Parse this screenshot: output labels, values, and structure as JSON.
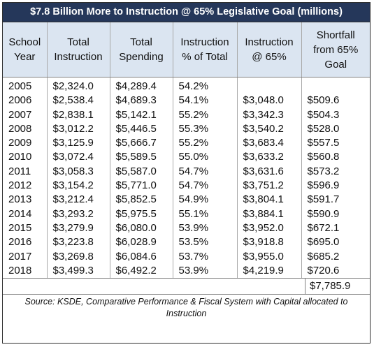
{
  "title": "$7.8 Billion More to Instruction @ 65% Legislative Goal (millions)",
  "columns": [
    [
      "School",
      "Year"
    ],
    [
      "Total",
      "Instruction"
    ],
    [
      "Total",
      "Spending"
    ],
    [
      "Instruction",
      "% of Total"
    ],
    [
      "Instruction",
      "@ 65%"
    ],
    [
      "Shortfall",
      "from 65%",
      "Goal"
    ]
  ],
  "rows": [
    [
      "2005",
      "$2,324.0",
      "$4,289.4",
      "54.2%",
      "",
      ""
    ],
    [
      "2006",
      "$2,538.4",
      "$4,689.3",
      "54.1%",
      "$3,048.0",
      "$509.6"
    ],
    [
      "2007",
      "$2,838.1",
      "$5,142.1",
      "55.2%",
      "$3,342.3",
      "$504.3"
    ],
    [
      "2008",
      "$3,012.2",
      "$5,446.5",
      "55.3%",
      "$3,540.2",
      "$528.0"
    ],
    [
      "2009",
      "$3,125.9",
      "$5,666.7",
      "55.2%",
      "$3,683.4",
      "$557.5"
    ],
    [
      "2010",
      "$3,072.4",
      "$5,589.5",
      "55.0%",
      "$3,633.2",
      "$560.8"
    ],
    [
      "2011",
      "$3,058.3",
      "$5,587.0",
      "54.7%",
      "$3,631.6",
      "$573.2"
    ],
    [
      "2012",
      "$3,154.2",
      "$5,771.0",
      "54.7%",
      "$3,751.2",
      "$596.9"
    ],
    [
      "2013",
      "$3,212.4",
      "$5,852.5",
      "54.9%",
      "$3,804.1",
      "$591.7"
    ],
    [
      "2014",
      "$3,293.2",
      "$5,975.5",
      "55.1%",
      "$3,884.1",
      "$590.9"
    ],
    [
      "2015",
      "$3,279.9",
      "$6,080.0",
      "53.9%",
      "$3,952.0",
      "$672.1"
    ],
    [
      "2016",
      "$3,223.8",
      "$6,028.9",
      "53.5%",
      "$3,918.8",
      "$695.0"
    ],
    [
      "2017",
      "$3,269.8",
      "$6,084.6",
      "53.7%",
      "$3,955.0",
      "$685.2"
    ],
    [
      "2018",
      "$3,499.3",
      "$6,492.2",
      "53.9%",
      "$4,219.9",
      "$720.6"
    ]
  ],
  "total": "$7,785.9",
  "source": "Source: KSDE, Comparative Performance & Fiscal System with Capital allocated to Instruction",
  "colors": {
    "title_bg": "#25375a",
    "title_text": "#ffffff",
    "header_bg": "#dbe5f1",
    "border": "#2f2f2f"
  }
}
